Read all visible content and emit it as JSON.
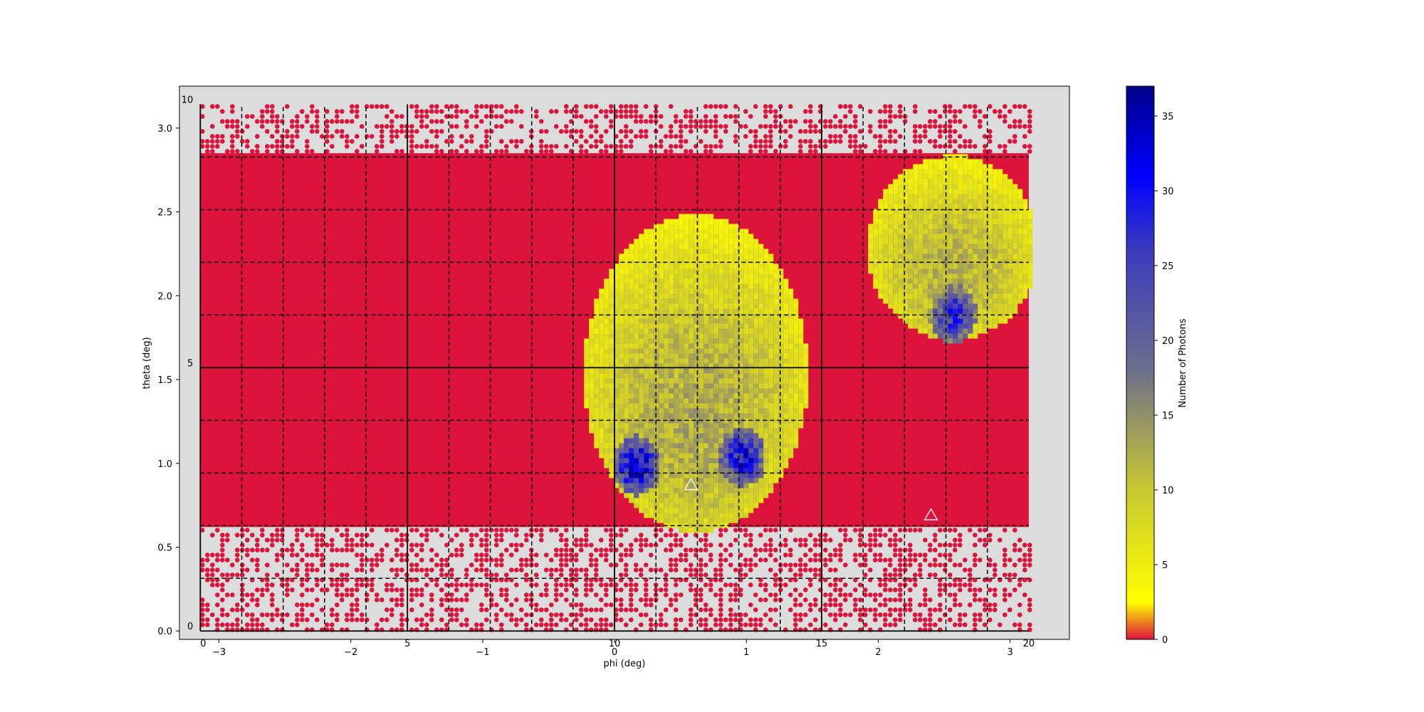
{
  "chart_data": {
    "type": "heatmap",
    "title": "",
    "xlabel": "phi (deg)",
    "ylabel": "theta (deg)",
    "colorbar_label": "Number of Photons",
    "xlim": [
      -3.3,
      3.45
    ],
    "ylim": [
      -0.05,
      3.25
    ],
    "x_ticks": [
      -3,
      -2,
      -1,
      0,
      1,
      2,
      3
    ],
    "x_tick_labels": [
      "−3",
      "−2",
      "−1",
      "0",
      "1",
      "2",
      "3"
    ],
    "y_ticks": [
      0.0,
      0.5,
      1.0,
      1.5,
      2.0,
      2.5,
      3.0
    ],
    "y_tick_labels": [
      "0.0",
      "0.5",
      "1.0",
      "1.5",
      "2.0",
      "2.5",
      "3.0"
    ],
    "pixel_grid": {
      "x_labels": [
        "0",
        "5",
        "10",
        "15",
        "20"
      ],
      "y_labels": [
        "0",
        "5",
        "10"
      ],
      "solid_phi": [
        -3.1416,
        -1.5708,
        0,
        1.5708,
        3.1416
      ],
      "dashed_phi_step": 0.31416,
      "solid_theta": [
        0,
        1.5708,
        3.1416
      ],
      "dashed_theta_step": 0.31416
    },
    "background_value": 0,
    "hotspots": [
      {
        "phi": 0.6,
        "theta": 1.55,
        "phi_halfwidth": 0.85,
        "theta_halfwidth": 0.95,
        "peak": 14
      },
      {
        "phi": 2.55,
        "theta": 2.3,
        "phi_halfwidth": 0.65,
        "theta_halfwidth": 0.55,
        "peak": 13
      }
    ],
    "peak_regions": [
      {
        "phi": 0.15,
        "theta": 1.0,
        "value": 36
      },
      {
        "phi": 0.95,
        "theta": 1.05,
        "value": 34
      },
      {
        "phi": 2.55,
        "theta": 1.9,
        "value": 30
      }
    ],
    "markers": [
      {
        "phi": 0.58,
        "theta": 0.87,
        "shape": "triangle"
      },
      {
        "phi": 2.4,
        "theta": 0.69,
        "shape": "triangle"
      }
    ],
    "colorbar": {
      "min": 0,
      "max": 37,
      "ticks": [
        0,
        5,
        10,
        15,
        20,
        25,
        30,
        35
      ],
      "tick_labels": [
        "0",
        "5",
        "10",
        "15",
        "20",
        "25",
        "30",
        "35"
      ],
      "colors": [
        "#dc143c",
        "#ffff00",
        "#c8c832",
        "#6e6e8c",
        "#3c3cbe",
        "#0000ff",
        "#00008b"
      ]
    },
    "colors": {
      "axes_bg": "#dcdcdc",
      "low": "#dc143c",
      "mid": "#ffff00",
      "high": "#00008b"
    }
  }
}
